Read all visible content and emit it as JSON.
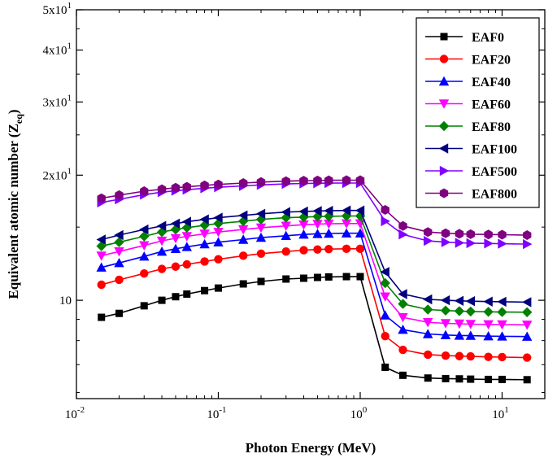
{
  "chart_data": {
    "type": "line",
    "title": "",
    "xlabel": "Photon Energy (MeV)",
    "ylabel_main": "Equivalent atomic number (Z",
    "ylabel_sub": "eq",
    "ylabel_close": ")",
    "xscale": "log",
    "yscale": "log",
    "xlim": [
      0.01,
      20
    ],
    "ylim": [
      5.8,
      50
    ],
    "legend_position": "top-right",
    "x_ticks": [
      {
        "value": 0.01,
        "base": "10",
        "exp": "-2"
      },
      {
        "value": 0.1,
        "base": "10",
        "exp": "-1"
      },
      {
        "value": 1,
        "base": "10",
        "exp": "0"
      },
      {
        "value": 10,
        "base": "10",
        "exp": "1"
      }
    ],
    "y_ticks": [
      {
        "value": 10,
        "base": "10",
        "exp": ""
      },
      {
        "value": 20,
        "base": "2x10",
        "exp": "1"
      },
      {
        "value": 30,
        "base": "3x10",
        "exp": "1"
      },
      {
        "value": 40,
        "base": "4x10",
        "exp": "1"
      },
      {
        "value": 50,
        "base": "5x10",
        "exp": "1"
      }
    ],
    "x": [
      0.015,
      0.02,
      0.03,
      0.04,
      0.05,
      0.06,
      0.08,
      0.1,
      0.15,
      0.2,
      0.3,
      0.4,
      0.5,
      0.6,
      0.8,
      1.0,
      1.5,
      2,
      3,
      4,
      5,
      6,
      8,
      10,
      15
    ],
    "series": [
      {
        "name": "EAF0",
        "color": "#000000",
        "marker": "square",
        "values": [
          9.1,
          9.3,
          9.7,
          10.0,
          10.2,
          10.35,
          10.55,
          10.7,
          10.95,
          11.1,
          11.25,
          11.3,
          11.35,
          11.38,
          11.4,
          11.4,
          6.9,
          6.6,
          6.5,
          6.48,
          6.47,
          6.46,
          6.45,
          6.45,
          6.44
        ]
      },
      {
        "name": "EAF20",
        "color": "#ff0000",
        "marker": "circle",
        "values": [
          10.9,
          11.2,
          11.6,
          11.9,
          12.05,
          12.2,
          12.4,
          12.55,
          12.8,
          12.95,
          13.1,
          13.2,
          13.25,
          13.28,
          13.3,
          13.3,
          8.2,
          7.6,
          7.4,
          7.36,
          7.34,
          7.33,
          7.31,
          7.3,
          7.28
        ]
      },
      {
        "name": "EAF40",
        "color": "#0000ff",
        "marker": "triangle-up",
        "values": [
          12.0,
          12.3,
          12.75,
          13.1,
          13.3,
          13.45,
          13.65,
          13.8,
          14.0,
          14.15,
          14.3,
          14.4,
          14.45,
          14.48,
          14.5,
          14.5,
          9.2,
          8.5,
          8.3,
          8.25,
          8.23,
          8.22,
          8.2,
          8.19,
          8.18
        ]
      },
      {
        "name": "EAF60",
        "color": "#ff00ff",
        "marker": "triangle-down",
        "values": [
          12.8,
          13.1,
          13.55,
          13.9,
          14.1,
          14.25,
          14.45,
          14.6,
          14.8,
          14.95,
          15.1,
          15.2,
          15.25,
          15.28,
          15.3,
          15.3,
          10.2,
          9.1,
          8.85,
          8.8,
          8.78,
          8.76,
          8.75,
          8.74,
          8.73
        ]
      },
      {
        "name": "EAF80",
        "color": "#008000",
        "marker": "diamond",
        "values": [
          13.5,
          13.8,
          14.25,
          14.6,
          14.8,
          14.95,
          15.15,
          15.3,
          15.5,
          15.65,
          15.8,
          15.85,
          15.9,
          15.92,
          15.95,
          15.95,
          11.0,
          9.8,
          9.5,
          9.45,
          9.42,
          9.4,
          9.38,
          9.37,
          9.36
        ]
      },
      {
        "name": "EAF100",
        "color": "#000080",
        "marker": "triangle-left",
        "values": [
          14.0,
          14.35,
          14.8,
          15.1,
          15.3,
          15.45,
          15.65,
          15.8,
          16.0,
          16.15,
          16.3,
          16.35,
          16.4,
          16.42,
          16.45,
          16.45,
          11.7,
          10.35,
          10.05,
          10.0,
          9.97,
          9.95,
          9.93,
          9.92,
          9.9
        ]
      },
      {
        "name": "EAF500",
        "color": "#8000ff",
        "marker": "triangle-right",
        "values": [
          17.2,
          17.5,
          17.95,
          18.2,
          18.35,
          18.45,
          18.6,
          18.7,
          18.85,
          18.95,
          19.05,
          19.1,
          19.12,
          19.14,
          19.15,
          19.15,
          15.5,
          14.4,
          13.9,
          13.8,
          13.75,
          13.72,
          13.7,
          13.68,
          13.65
        ]
      },
      {
        "name": "EAF800",
        "color": "#800080",
        "marker": "hexagon",
        "values": [
          17.6,
          17.9,
          18.3,
          18.5,
          18.65,
          18.75,
          18.9,
          19.0,
          19.15,
          19.25,
          19.35,
          19.4,
          19.42,
          19.44,
          19.45,
          19.45,
          16.5,
          15.1,
          14.6,
          14.5,
          14.45,
          14.42,
          14.4,
          14.38,
          14.35
        ]
      }
    ]
  }
}
